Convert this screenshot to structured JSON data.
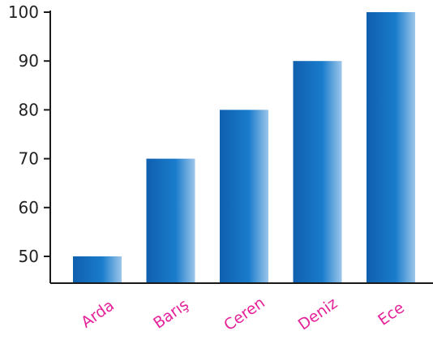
{
  "chart_data": {
    "type": "bar",
    "categories": [
      "Arda",
      "Barış",
      "Ceren",
      "Deniz",
      "Ece"
    ],
    "values": [
      50,
      70,
      80,
      90,
      100
    ],
    "yticks": [
      50,
      60,
      70,
      80,
      90,
      100
    ],
    "ylim": [
      45,
      100
    ],
    "title": "",
    "xlabel": "",
    "ylabel": "",
    "grid": false,
    "colors": {
      "bar_dark": "#0f5fae",
      "bar_mid": "#1a7ccc",
      "bar_light": "#9cc6ea",
      "axis": "#1a1a1a",
      "category_label": "#e6229a"
    }
  }
}
